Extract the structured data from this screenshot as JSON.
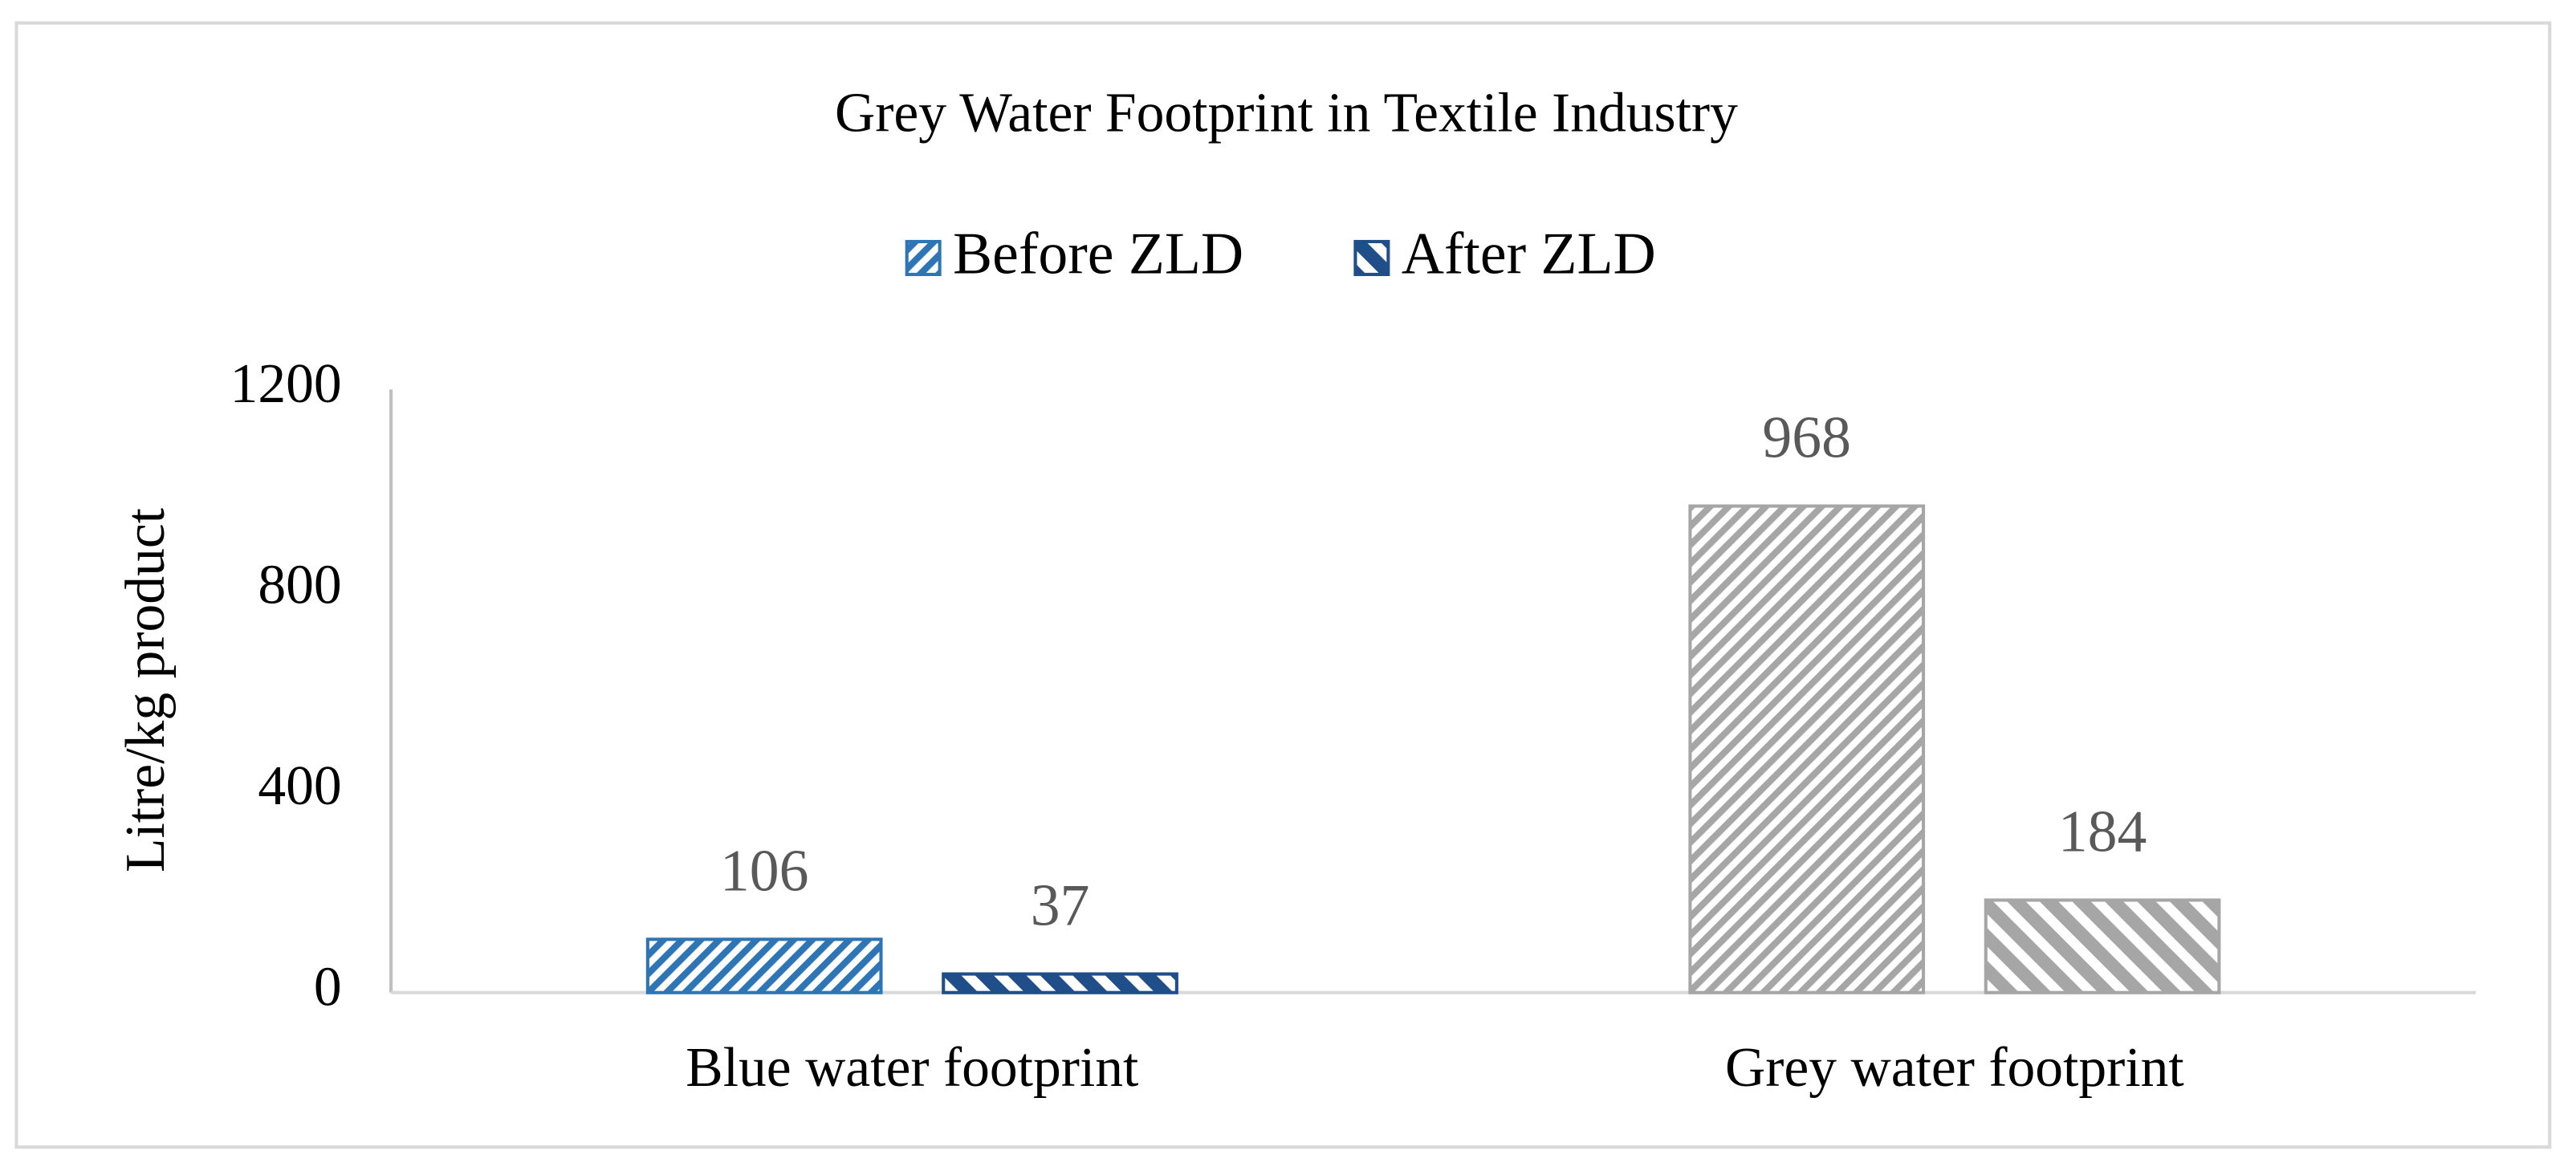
{
  "chart_data": {
    "type": "bar",
    "title": "Grey Water Footprint in Textile Industry",
    "y_label": "Litre/kg product",
    "categories": [
      "Blue water footprint",
      "Grey water footprint"
    ],
    "series": [
      {
        "name": "Before ZLD",
        "color": "#2e75b6",
        "point_colors": [
          "#2e75b6",
          "#a6a6a6"
        ],
        "values": [
          106,
          968
        ]
      },
      {
        "name": "After ZLD",
        "color": "#1f4e89",
        "point_colors": [
          "#1f4e89",
          "#a6a6a6"
        ],
        "values": [
          37,
          184
        ]
      }
    ],
    "ylim": [
      0,
      1200
    ],
    "yticks": [
      0,
      400,
      800,
      1200
    ],
    "grid": false,
    "legend": "top"
  }
}
